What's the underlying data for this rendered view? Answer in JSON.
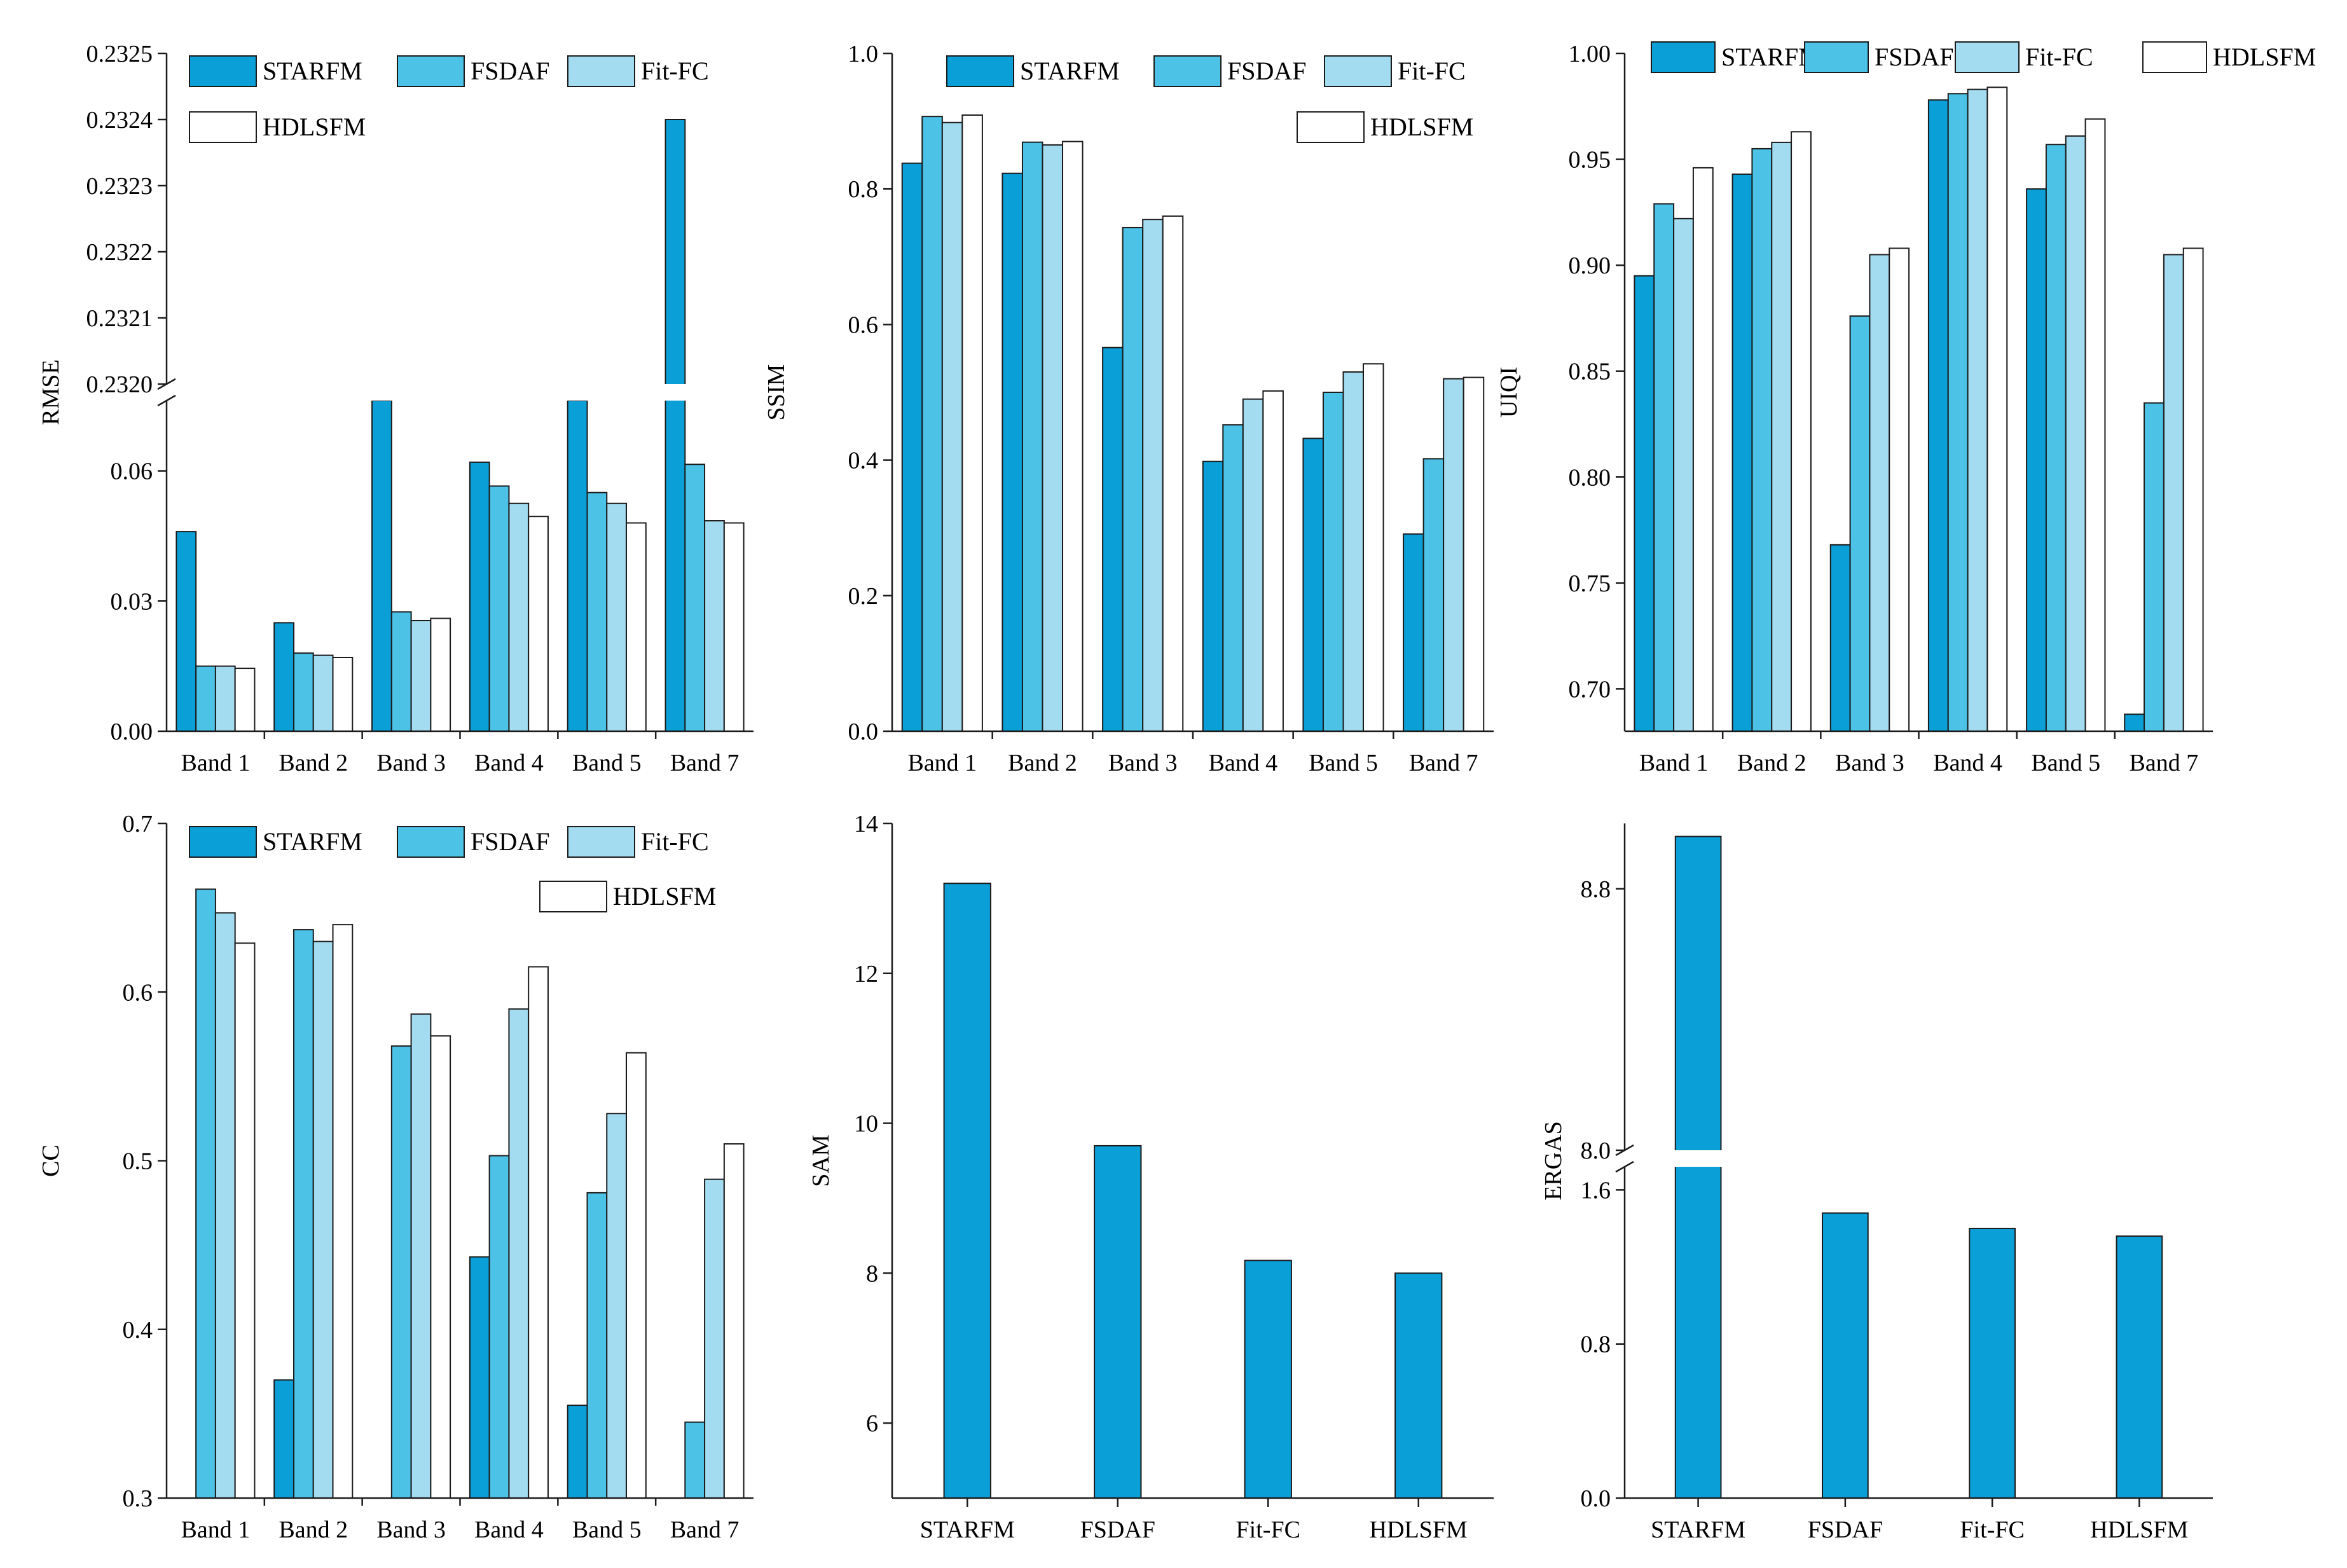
{
  "palette": {
    "STARFM": "#0b9fd8",
    "FSDAF": "#4cc2e6",
    "Fit-FC": "#a3dcf0",
    "HDLSFM": "#ffffff",
    "stroke": "#1b1b1b",
    "break_gap": "#ffffff"
  },
  "chart_data": [
    {
      "id": "rmse",
      "type": "bar",
      "ylabel": "RMSE",
      "categories": [
        "Band 1",
        "Band 2",
        "Band 3",
        "Band 4",
        "Band 5",
        "Band 7"
      ],
      "series": [
        {
          "name": "STARFM",
          "values": [
            0.046,
            0.025,
            0.2319,
            0.062,
            0.2319,
            0.2324
          ]
        },
        {
          "name": "FSDAF",
          "values": [
            0.015,
            0.018,
            0.0275,
            0.0565,
            0.055,
            0.0615
          ]
        },
        {
          "name": "Fit-FC",
          "values": [
            0.015,
            0.0175,
            0.0255,
            0.0525,
            0.0525,
            0.0485
          ]
        },
        {
          "name": "HDLSFM",
          "values": [
            0.0145,
            0.017,
            0.026,
            0.0495,
            0.048,
            0.048
          ]
        }
      ],
      "y_break": true,
      "lower_range": [
        0.0,
        0.0762
      ],
      "lower_ticks": [
        0.0,
        0.03,
        0.06
      ],
      "lower_tick_labels": [
        "0.00",
        "0.03",
        "0.06"
      ],
      "upper_range": [
        0.232,
        0.2325
      ],
      "upper_ticks": [
        0.232,
        0.2321,
        0.2322,
        0.2323,
        0.2324,
        0.2325
      ],
      "upper_tick_labels": [
        "0.2320",
        "0.2321",
        "0.2322",
        "0.2323",
        "0.2324",
        "0.2325"
      ],
      "legend_position": "top-left"
    },
    {
      "id": "ssim",
      "type": "bar",
      "ylabel": "SSIM",
      "categories": [
        "Band 1",
        "Band 2",
        "Band 3",
        "Band 4",
        "Band 5",
        "Band 7"
      ],
      "series": [
        {
          "name": "STARFM",
          "values": [
            0.838,
            0.823,
            0.566,
            0.398,
            0.432,
            0.291
          ]
        },
        {
          "name": "FSDAF",
          "values": [
            0.907,
            0.869,
            0.743,
            0.452,
            0.5,
            0.402
          ]
        },
        {
          "name": "Fit-FC",
          "values": [
            0.898,
            0.865,
            0.755,
            0.49,
            0.53,
            0.52
          ]
        },
        {
          "name": "HDLSFM",
          "values": [
            0.909,
            0.87,
            0.76,
            0.502,
            0.542,
            0.522
          ]
        }
      ],
      "ylim": [
        0.0,
        1.0
      ],
      "yticks": [
        0.0,
        0.2,
        0.4,
        0.6,
        0.8,
        1.0
      ],
      "ytick_labels": [
        "0.0",
        "0.2",
        "0.4",
        "0.6",
        "0.8",
        "1.0"
      ],
      "legend_position": "top-right"
    },
    {
      "id": "uiqi",
      "type": "bar",
      "ylabel": "UIQI",
      "categories": [
        "Band 1",
        "Band 2",
        "Band 3",
        "Band 4",
        "Band 5",
        "Band 7"
      ],
      "series": [
        {
          "name": "STARFM",
          "values": [
            0.895,
            0.943,
            0.768,
            0.978,
            0.936,
            0.688
          ]
        },
        {
          "name": "FSDAF",
          "values": [
            0.929,
            0.955,
            0.876,
            0.981,
            0.957,
            0.835
          ]
        },
        {
          "name": "Fit-FC",
          "values": [
            0.922,
            0.958,
            0.905,
            0.983,
            0.961,
            0.905
          ]
        },
        {
          "name": "HDLSFM",
          "values": [
            0.946,
            0.963,
            0.908,
            0.984,
            0.969,
            0.908
          ]
        }
      ],
      "ylim": [
        0.68,
        1.0
      ],
      "yticks": [
        0.7,
        0.75,
        0.8,
        0.85,
        0.9,
        0.95,
        1.0
      ],
      "ytick_labels": [
        "0.70",
        "0.75",
        "0.80",
        "0.85",
        "0.90",
        "0.95",
        "1.00"
      ],
      "legend_position": "top"
    },
    {
      "id": "cc",
      "type": "bar",
      "ylabel": "CC",
      "categories": [
        "Band 1",
        "Band 2",
        "Band 3",
        "Band 4",
        "Band 5",
        "Band 7"
      ],
      "series": [
        {
          "name": "STARFM",
          "values": [
            0.299,
            0.37,
            0.299,
            0.443,
            0.355,
            0.299
          ]
        },
        {
          "name": "FSDAF",
          "values": [
            0.661,
            0.637,
            0.568,
            0.503,
            0.481,
            0.345
          ]
        },
        {
          "name": "Fit-FC",
          "values": [
            0.647,
            0.63,
            0.587,
            0.59,
            0.528,
            0.489
          ]
        },
        {
          "name": "HDLSFM",
          "values": [
            0.629,
            0.64,
            0.574,
            0.615,
            0.564,
            0.51
          ]
        }
      ],
      "ylim": [
        0.3,
        0.7
      ],
      "yticks": [
        0.3,
        0.4,
        0.5,
        0.6,
        0.7
      ],
      "ytick_labels": [
        "0.3",
        "0.4",
        "0.5",
        "0.6",
        "0.7"
      ],
      "legend_position": "top-right"
    },
    {
      "id": "sam",
      "type": "bar",
      "ylabel": "SAM",
      "categories": [
        "STARFM",
        "FSDAF",
        "Fit-FC",
        "HDLSFM"
      ],
      "values": [
        13.2,
        9.7,
        8.17,
        8.0
      ],
      "ylim": [
        5.0,
        14.0
      ],
      "yticks": [
        6,
        8,
        10,
        12,
        14
      ],
      "ytick_labels": [
        "6",
        "8",
        "10",
        "12",
        "14"
      ]
    },
    {
      "id": "ergas",
      "type": "bar",
      "ylabel": "ERGAS",
      "categories": [
        "STARFM",
        "FSDAF",
        "Fit-FC",
        "HDLSFM"
      ],
      "values": [
        8.96,
        1.48,
        1.4,
        1.36
      ],
      "y_break": true,
      "lower_range": [
        0.0,
        1.72
      ],
      "lower_ticks": [
        0.0,
        0.8,
        1.6
      ],
      "lower_tick_labels": [
        "0.0",
        "0.8",
        "1.6"
      ],
      "upper_range": [
        8.0,
        9.0
      ],
      "upper_ticks": [
        8.0,
        8.8
      ],
      "upper_tick_labels": [
        "8.0",
        "8.8"
      ]
    }
  ]
}
